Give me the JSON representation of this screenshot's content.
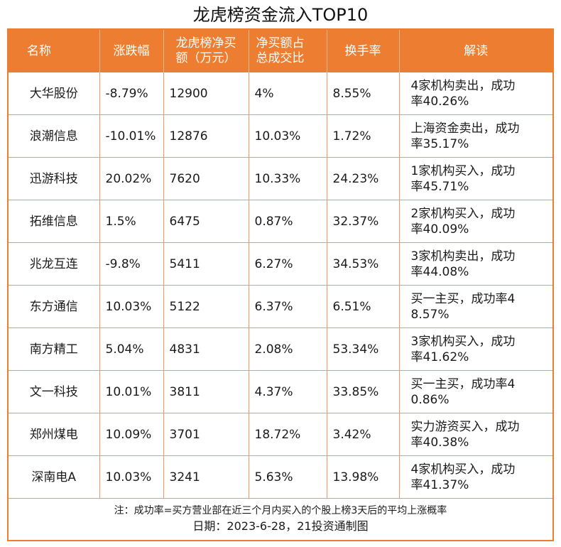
{
  "title": "龙虎榜资金流入TOP10",
  "headers": {
    "name": "名称",
    "change": "涨跌幅",
    "net_buy_line1": "龙虎榜净买",
    "net_buy_line2": "额（万元）",
    "ratio_line1": "净买额占",
    "ratio_line2": "总成交比",
    "turnover": "换手率",
    "interpretation": "解读"
  },
  "rows": [
    {
      "name": "大华股份",
      "change": "-8.79%",
      "net_buy": "12900",
      "ratio": "4%",
      "turnover": "8.55%",
      "read1": "4家机构卖出，成功",
      "read2": "率40.26%"
    },
    {
      "name": "浪潮信息",
      "change": "-10.01%",
      "net_buy": "12876",
      "ratio": "10.03%",
      "turnover": "1.72%",
      "read1": "上海资金卖出，成功",
      "read2": "率35.17%"
    },
    {
      "name": "迅游科技",
      "change": "20.02%",
      "net_buy": "7620",
      "ratio": "10.33%",
      "turnover": "24.23%",
      "read1": "1家机构买入，成功",
      "read2": "率45.71%"
    },
    {
      "name": "拓维信息",
      "change": "1.5%",
      "net_buy": "6475",
      "ratio": "0.87%",
      "turnover": "32.37%",
      "read1": "2家机构买入，成功",
      "read2": "率40.09%"
    },
    {
      "name": "兆龙互连",
      "change": "-9.8%",
      "net_buy": "5411",
      "ratio": "6.27%",
      "turnover": "34.53%",
      "read1": "3家机构卖出，成功",
      "read2": "率44.08%"
    },
    {
      "name": "东方通信",
      "change": "10.03%",
      "net_buy": "5122",
      "ratio": "6.37%",
      "turnover": "6.51%",
      "read1": "买一主买，成功率4",
      "read2": "8.57%"
    },
    {
      "name": "南方精工",
      "change": "5.04%",
      "net_buy": "4831",
      "ratio": "2.08%",
      "turnover": "53.34%",
      "read1": "3家机构买入，成功",
      "read2": "率41.62%"
    },
    {
      "name": "文一科技",
      "change": "10.01%",
      "net_buy": "3811",
      "ratio": "4.37%",
      "turnover": "33.85%",
      "read1": "买一主买，成功率4",
      "read2": "0.86%"
    },
    {
      "name": "郑州煤电",
      "change": "10.09%",
      "net_buy": "3701",
      "ratio": "18.72%",
      "turnover": "3.42%",
      "read1": "实力游资买入，成功",
      "read2": "率40.38%"
    },
    {
      "name": "深南电A",
      "change": "10.03%",
      "net_buy": "3241",
      "ratio": "5.63%",
      "turnover": "13.98%",
      "read1": "4家机构买入，成功",
      "read2": "率41.37%"
    }
  ],
  "footer": {
    "note": "注：成功率=买方营业部在近三个月内买入的个股上榜3天后的平均上涨概率",
    "date": "日期：2023-6-28，21投资通制图"
  },
  "colors": {
    "accent": "#ed7d31",
    "header_text": "#ffffff"
  }
}
